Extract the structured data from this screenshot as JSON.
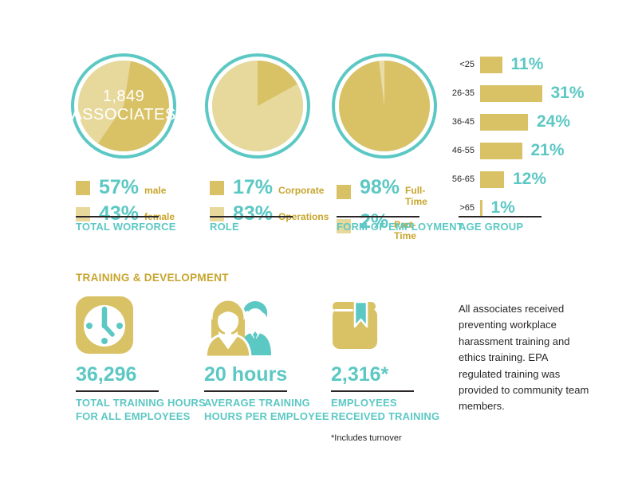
{
  "colors": {
    "gold_dark": "#D9C266",
    "gold_light": "#E7D89B",
    "teal": "#5CC8C4",
    "gold_text": "#C7A52D",
    "ink": "#2A2627"
  },
  "chart_data": [
    {
      "type": "pie",
      "title": "TOTAL WORFORCE",
      "center_line1": "1,849",
      "center_line2": "ASSOCIATES",
      "categories": [
        "male",
        "female"
      ],
      "values": [
        57,
        43
      ],
      "legend": [
        {
          "pct": "57%",
          "label": "male"
        },
        {
          "pct": "43%",
          "label": "female"
        }
      ],
      "slices": [
        {
          "label": "male",
          "value": 57,
          "color": "#D9C266"
        },
        {
          "label": "female",
          "value": 43,
          "color": "#E7D89B"
        }
      ],
      "start_angle_deg": 9
    },
    {
      "type": "pie",
      "title": "ROLE",
      "categories": [
        "Corporate",
        "Operations"
      ],
      "values": [
        17,
        83
      ],
      "legend": [
        {
          "pct": "17%",
          "label": "Corporate"
        },
        {
          "pct": "83%",
          "label": "Operations"
        }
      ],
      "slices": [
        {
          "label": "Corporate",
          "value": 17,
          "color": "#D9C266"
        },
        {
          "label": "Operations",
          "value": 83,
          "color": "#E7D89B"
        }
      ],
      "start_angle_deg": 0
    },
    {
      "type": "pie",
      "title": "FORM OF EMPLOYMENT",
      "categories": [
        "Full-Time",
        "Part-Time"
      ],
      "values": [
        98,
        2
      ],
      "legend": [
        {
          "pct": "98%",
          "label": "Full-Time"
        },
        {
          "pct": "2%",
          "label": "Part-Time"
        }
      ],
      "slices": [
        {
          "label": "Part-Time",
          "value": 2,
          "color": "#E9DCA8"
        },
        {
          "label": "Full-Time",
          "value": 98,
          "color": "#D9C266"
        }
      ],
      "start_angle_deg": -7
    },
    {
      "type": "bar",
      "title": "AGE GROUP",
      "orientation": "horizontal",
      "grid": false,
      "categories": [
        "<25",
        "26-35",
        "36-45",
        "46-55",
        "56-65",
        ">65"
      ],
      "values": [
        11,
        31,
        24,
        21,
        12,
        1
      ],
      "value_labels": [
        "11%",
        "31%",
        "24%",
        "21%",
        "12%",
        "1%"
      ],
      "xlim": [
        0,
        31
      ],
      "bar_color": "#D9C266"
    }
  ],
  "training": {
    "heading": "TRAINING & DEVELOPMENT",
    "stats": [
      {
        "icon": "clock-icon",
        "value": "36,296",
        "caption_line1": "TOTAL TRAINING HOURS",
        "caption_line2": "FOR ALL EMPLOYEES"
      },
      {
        "icon": "trainer-trainee-icon",
        "value": "20 hours",
        "caption_line1": "AVERAGE TRAINING",
        "caption_line2": "HOURS PER EMPLOYEE"
      },
      {
        "icon": "book-bookmark-icon",
        "value": "2,316*",
        "caption_line1": "EMPLOYEES",
        "caption_line2": "RECEIVED TRAINING",
        "footnote": "*Includes turnover"
      }
    ],
    "note": "All associates received preventing workplace harassment training and ethics training. EPA regulated training was provided to community team members."
  }
}
